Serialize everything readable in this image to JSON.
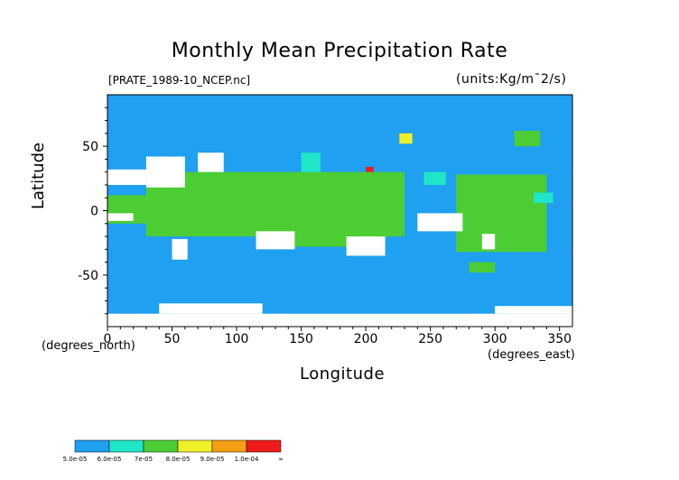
{
  "chart_data": {
    "type": "heatmap",
    "title": "Monthly Mean Precipitation Rate",
    "source_label": "[PRATE_1989-10_NCEP.nc]",
    "units": "(units:Kg/m¯2/s)",
    "xlabel": "Longitude",
    "ylabel": "Latitude",
    "x_units_label": "(degrees_east)",
    "y_units_label": "(degrees_north)",
    "xlim": [
      0,
      360
    ],
    "ylim": [
      -90,
      90
    ],
    "x_ticks": [
      0,
      50,
      100,
      150,
      200,
      250,
      300,
      350
    ],
    "y_ticks": [
      -50,
      0,
      50
    ],
    "background_color": "#1fa0f0",
    "missing_color": "#ffffff",
    "colorbar": {
      "labels": [
        "5.0e-05",
        "6.0e-05",
        "7e-05",
        "8.0e-05",
        "9.0e-05",
        "1.0e-04",
        "∞"
      ],
      "colors": [
        "#1fa0f0",
        "#1fe6c8",
        "#4ccd34",
        "#f0f028",
        "#f5a014",
        "#ee1c1c"
      ]
    },
    "regions": [
      {
        "level": 5,
        "lon": [
          88,
          100
        ],
        "lat": [
          8,
          22
        ]
      },
      {
        "level": 5,
        "lon": [
          100,
          118
        ],
        "lat": [
          10,
          22
        ]
      },
      {
        "level": 5,
        "lon": [
          120,
          145
        ],
        "lat": [
          8,
          18
        ]
      },
      {
        "level": 5,
        "lon": [
          128,
          148
        ],
        "lat": [
          -2,
          8
        ]
      },
      {
        "level": 5,
        "lon": [
          84,
          92
        ],
        "lat": [
          -10,
          -4
        ]
      },
      {
        "level": 5,
        "lon": [
          288,
          302
        ],
        "lat": [
          5,
          15
        ]
      },
      {
        "level": 5,
        "lon": [
          300,
          318
        ],
        "lat": [
          -10,
          3
        ]
      },
      {
        "level": 5,
        "lon": [
          170,
          185
        ],
        "lat": [
          -6,
          -2
        ]
      },
      {
        "level": 5,
        "lon": [
          200,
          206
        ],
        "lat": [
          24,
          34
        ]
      },
      {
        "level": 5,
        "lon": [
          226,
          232
        ],
        "lat": [
          56,
          60
        ]
      },
      {
        "level": 5,
        "lon": [
          320,
          328
        ],
        "lat": [
          10,
          14
        ]
      },
      {
        "level": 4,
        "lon": [
          72,
          150
        ],
        "lat": [
          -12,
          26
        ]
      },
      {
        "level": 4,
        "lon": [
          160,
          210
        ],
        "lat": [
          4,
          12
        ]
      },
      {
        "level": 4,
        "lon": [
          282,
          322
        ],
        "lat": [
          -16,
          18
        ]
      },
      {
        "level": 3,
        "lon": [
          40,
          160
        ],
        "lat": [
          -16,
          28
        ]
      },
      {
        "level": 3,
        "lon": [
          160,
          225
        ],
        "lat": [
          0,
          16
        ]
      },
      {
        "level": 3,
        "lon": [
          150,
          210
        ],
        "lat": [
          -22,
          -10
        ]
      },
      {
        "level": 3,
        "lon": [
          278,
          330
        ],
        "lat": [
          -28,
          22
        ]
      },
      {
        "level": 3,
        "lon": [
          0,
          25
        ],
        "lat": [
          -6,
          8
        ]
      },
      {
        "level": 3,
        "lon": [
          226,
          236
        ],
        "lat": [
          52,
          60
        ]
      },
      {
        "level": 2,
        "lon": [
          30,
          230
        ],
        "lat": [
          -20,
          30
        ]
      },
      {
        "level": 2,
        "lon": [
          0,
          40
        ],
        "lat": [
          -10,
          12
        ]
      },
      {
        "level": 2,
        "lon": [
          270,
          340
        ],
        "lat": [
          -32,
          28
        ]
      },
      {
        "level": 2,
        "lon": [
          140,
          215
        ],
        "lat": [
          -28,
          -8
        ]
      },
      {
        "level": 2,
        "lon": [
          315,
          335
        ],
        "lat": [
          50,
          62
        ]
      },
      {
        "level": 2,
        "lon": [
          280,
          300
        ],
        "lat": [
          -48,
          -40
        ]
      },
      {
        "level": 1,
        "lon": [
          330,
          345
        ],
        "lat": [
          6,
          14
        ]
      },
      {
        "level": 1,
        "lon": [
          245,
          262
        ],
        "lat": [
          20,
          30
        ]
      },
      {
        "level": 1,
        "lon": [
          150,
          165
        ],
        "lat": [
          30,
          45
        ]
      },
      {
        "level": -1,
        "lon": [
          0,
          30
        ],
        "lat": [
          20,
          32
        ]
      },
      {
        "level": -1,
        "lon": [
          30,
          60
        ],
        "lat": [
          18,
          42
        ]
      },
      {
        "level": -1,
        "lon": [
          70,
          90
        ],
        "lat": [
          30,
          45
        ]
      },
      {
        "level": -1,
        "lon": [
          50,
          62
        ],
        "lat": [
          -38,
          -22
        ]
      },
      {
        "level": -1,
        "lon": [
          115,
          145
        ],
        "lat": [
          -30,
          -16
        ]
      },
      {
        "level": -1,
        "lon": [
          185,
          215
        ],
        "lat": [
          -35,
          -20
        ]
      },
      {
        "level": -1,
        "lon": [
          240,
          275
        ],
        "lat": [
          -16,
          -2
        ]
      },
      {
        "level": -1,
        "lon": [
          290,
          300
        ],
        "lat": [
          -30,
          -18
        ]
      },
      {
        "level": -1,
        "lon": [
          0,
          360
        ],
        "lat": [
          -90,
          -80
        ]
      },
      {
        "level": -1,
        "lon": [
          40,
          120
        ],
        "lat": [
          -80,
          -72
        ]
      },
      {
        "level": -1,
        "lon": [
          300,
          360
        ],
        "lat": [
          -80,
          -74
        ]
      },
      {
        "level": -1,
        "lon": [
          0,
          20
        ],
        "lat": [
          -8,
          -2
        ]
      }
    ]
  }
}
